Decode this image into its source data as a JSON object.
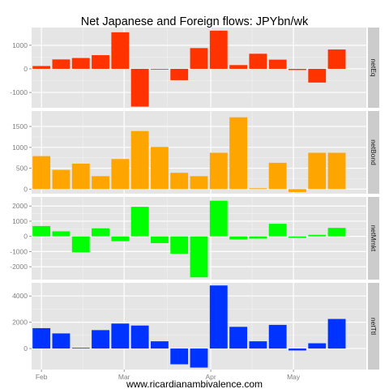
{
  "chart_data": {
    "type": "bar",
    "title": "Net Japanese and Foreign flows: JPYbn/wk",
    "caption": "www.ricardianambivalence.com",
    "x_tick_labels": [
      "Feb",
      "Mar",
      "Apr",
      "May"
    ],
    "x_tick_weeks": [
      0.5,
      4.7,
      9.1,
      13.3
    ],
    "weeks": 17,
    "grid": true,
    "facet_layout": "vertical-stacked, labels in right-side strips",
    "panels": [
      {
        "strip": "netEq",
        "color": "#ff3300",
        "ylim": [
          -1650,
          1750
        ],
        "yticks": [
          -1000,
          0,
          1000
        ],
        "tick_labels": [
          "-1000",
          "0",
          "1000"
        ],
        "values": [
          120,
          400,
          460,
          580,
          1550,
          -1600,
          -30,
          -480,
          880,
          1620,
          160,
          640,
          390,
          -50,
          -580,
          820
        ]
      },
      {
        "strip": "netBond",
        "color": "#ffa500",
        "ylim": [
          -110,
          1870
        ],
        "yticks": [
          0,
          500,
          1000,
          1500
        ],
        "tick_labels": [
          "0",
          "500",
          "1000",
          "1500"
        ],
        "values": [
          790,
          460,
          610,
          310,
          720,
          1390,
          1010,
          390,
          310,
          870,
          1720,
          20,
          630,
          -70,
          870,
          870
        ]
      },
      {
        "strip": "netMmkt",
        "color": "#00ff00",
        "ylim": [
          -2850,
          2600
        ],
        "yticks": [
          -2000,
          -1000,
          0,
          1000,
          2000
        ],
        "tick_labels": [
          "-2000",
          "-1000",
          "0",
          "1000",
          "2000"
        ],
        "values": [
          680,
          330,
          -1050,
          530,
          -320,
          1950,
          -450,
          -1150,
          -2700,
          2350,
          -200,
          -150,
          830,
          -100,
          100,
          560
        ]
      },
      {
        "strip": "netTtl",
        "color": "#0033ff",
        "ylim": [
          -1600,
          5000
        ],
        "yticks": [
          0,
          2000,
          4000
        ],
        "tick_labels": [
          "0",
          "2000",
          "4000"
        ],
        "values": [
          1550,
          1150,
          50,
          1400,
          1900,
          1750,
          550,
          -1200,
          -1450,
          4800,
          1650,
          550,
          1800,
          -150,
          400,
          2250
        ]
      }
    ]
  }
}
